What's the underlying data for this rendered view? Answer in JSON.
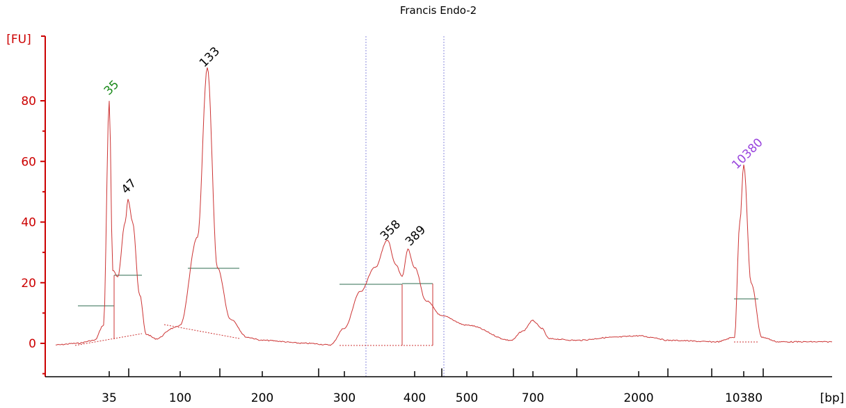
{
  "chart_data": {
    "type": "line",
    "title": "Francis Endo-2",
    "ylabel": "[FU]",
    "xlabel": "[bp]",
    "ylim": [
      -10,
      100
    ],
    "y_ticks": [
      0,
      20,
      40,
      60,
      80
    ],
    "x_ticks": [
      "35",
      "100",
      "200",
      "300",
      "400",
      "500",
      "700",
      "2000",
      "10380"
    ],
    "colors": {
      "axis": "#cc0000",
      "trace": "#cc3333",
      "baseline": "#2e6b4f",
      "marker_line": "#8888dd",
      "lower_marker": "#1a8a1a",
      "upper_marker": "#9944dd",
      "peak_label": "#000000"
    },
    "peaks": [
      {
        "label": "35",
        "color": "lower_marker"
      },
      {
        "label": "47",
        "color": "peak_label"
      },
      {
        "label": "133",
        "color": "peak_label"
      },
      {
        "label": "358",
        "color": "peak_label"
      },
      {
        "label": "389",
        "color": "peak_label"
      },
      {
        "label": "10380",
        "color": "upper_marker"
      }
    ],
    "series": [
      {
        "x": [
          20,
          25,
          30,
          33,
          35,
          37,
          40,
          45,
          47,
          50,
          55,
          60,
          70,
          90,
          100,
          120,
          133,
          145,
          160,
          180,
          200,
          250,
          280,
          300,
          320,
          340,
          358,
          370,
          380,
          389,
          400,
          420,
          450,
          500,
          600,
          650,
          700,
          750,
          800,
          1000,
          1500,
          2000,
          3000,
          5000,
          8000,
          9500,
          10000,
          10380,
          10700,
          11200,
          12000,
          15000
        ],
        "y": [
          -0.5,
          0,
          1,
          6,
          80,
          24,
          22,
          40,
          47.5,
          40,
          16,
          3,
          1.5,
          5,
          6,
          35,
          91,
          25,
          8,
          2,
          1,
          0,
          -0.5,
          5,
          17,
          25,
          34,
          26,
          22,
          31,
          25,
          14,
          9,
          6,
          1,
          4,
          7.5,
          5,
          1.5,
          1,
          2,
          2.5,
          2,
          1,
          0.5,
          2,
          40,
          59,
          20,
          2,
          0.5,
          0.5
        ]
      }
    ]
  }
}
